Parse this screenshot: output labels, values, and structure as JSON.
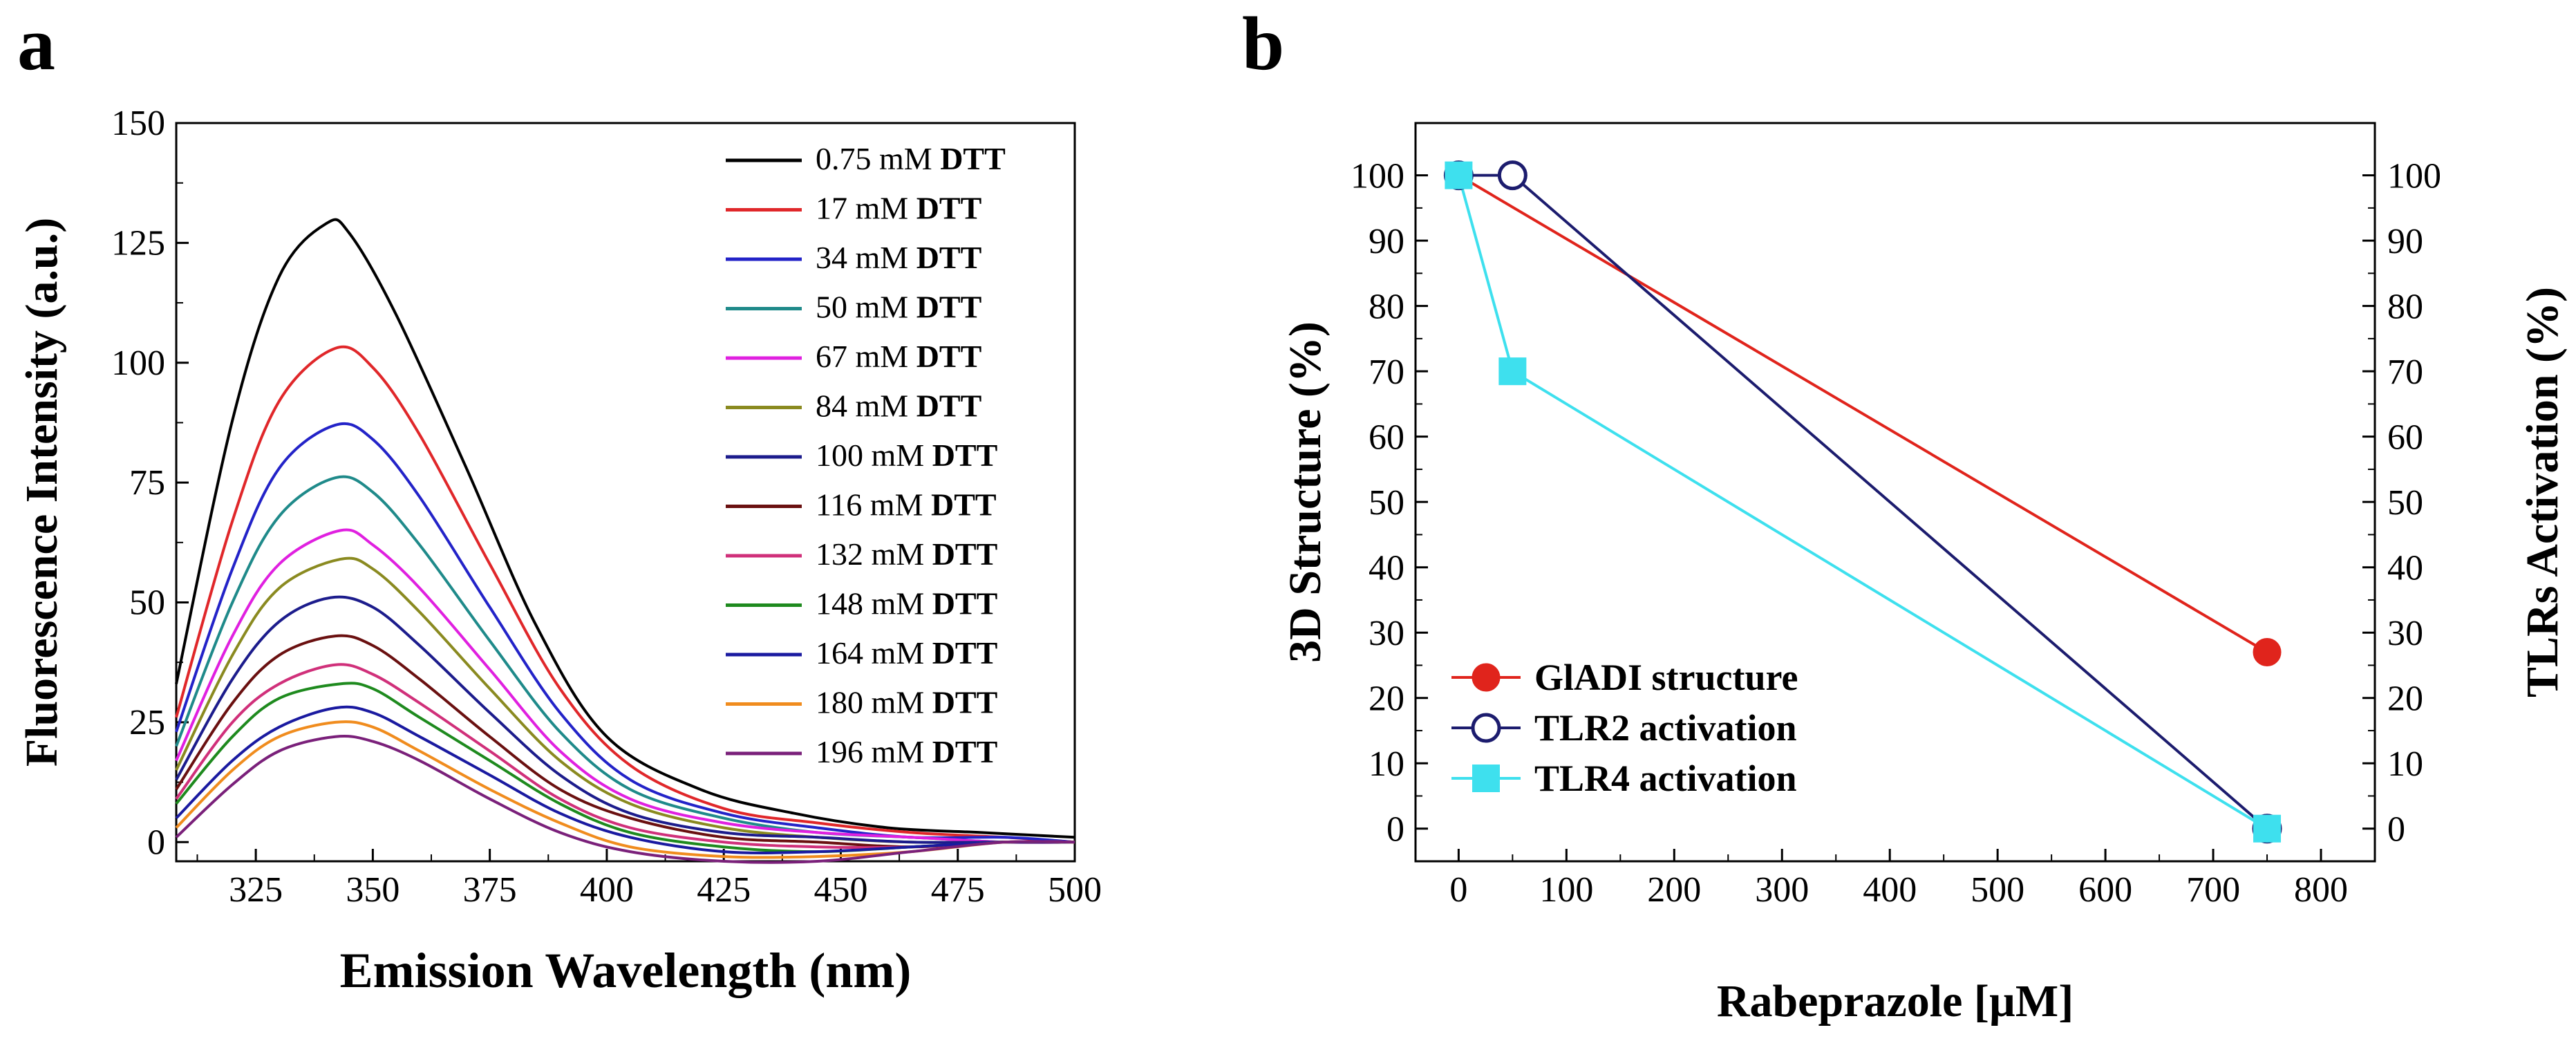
{
  "panels": {
    "a": "a",
    "b": "b"
  },
  "chart_data": [
    {
      "type": "line",
      "panel": "a",
      "xlabel": "Emission Wavelength (nm)",
      "ylabel": "Fluorescence Intensity (a.u.)",
      "xlim": [
        308,
        500
      ],
      "ylim": [
        -4,
        150
      ],
      "xticks": [
        325,
        350,
        375,
        400,
        425,
        450,
        475,
        500
      ],
      "yticks": [
        0,
        25,
        50,
        75,
        100,
        125,
        150
      ],
      "legend_suffix": "DTT",
      "series": [
        {
          "name": "0.75 mM",
          "color": "#000000",
          "peak": 129,
          "x": [
            308,
            320,
            330,
            340,
            345,
            355,
            370,
            385,
            400,
            420,
            440,
            460,
            480,
            500
          ],
          "y": [
            33,
            88,
            118,
            129,
            127,
            110,
            78,
            45,
            22,
            11,
            6,
            3,
            2,
            1
          ]
        },
        {
          "name": "17 mM",
          "color": "#e0272a",
          "peak": 103,
          "x": [
            308,
            320,
            330,
            342,
            350,
            360,
            375,
            390,
            405,
            425,
            445,
            465,
            485,
            500
          ],
          "y": [
            26,
            67,
            92,
            103,
            99,
            85,
            58,
            32,
            16,
            7,
            4,
            2,
            1,
            0
          ]
        },
        {
          "name": "34 mM",
          "color": "#2323c8",
          "peak": 87,
          "x": [
            308,
            320,
            330,
            342,
            350,
            360,
            375,
            390,
            405,
            425,
            445,
            465,
            485,
            500
          ],
          "y": [
            23,
            57,
            78,
            87,
            84,
            72,
            49,
            27,
            13,
            6,
            3,
            1,
            1,
            0
          ]
        },
        {
          "name": "50 mM",
          "color": "#1f8a8a",
          "peak": 76,
          "x": [
            308,
            320,
            330,
            342,
            350,
            360,
            375,
            390,
            405,
            425,
            445,
            465,
            485,
            500
          ],
          "y": [
            20,
            50,
            68,
            76,
            73,
            62,
            42,
            23,
            11,
            5,
            2,
            1,
            0,
            0
          ]
        },
        {
          "name": "67 mM",
          "color": "#e020e0",
          "peak": 65,
          "x": [
            308,
            320,
            330,
            343,
            350,
            360,
            375,
            390,
            405,
            425,
            445,
            465,
            485,
            500
          ],
          "y": [
            17,
            43,
            58,
            65,
            62,
            53,
            36,
            19,
            9,
            4,
            2,
            1,
            0,
            0
          ]
        },
        {
          "name": "84 mM",
          "color": "#8a8a20",
          "peak": 59,
          "x": [
            308,
            320,
            330,
            343,
            350,
            360,
            375,
            390,
            405,
            425,
            445,
            465,
            485,
            500
          ],
          "y": [
            15,
            39,
            53,
            59,
            57,
            48,
            32,
            17,
            8,
            3,
            1,
            0,
            0,
            0
          ]
        },
        {
          "name": "100 mM",
          "color": "#1c1c8c",
          "peak": 51,
          "x": [
            308,
            320,
            330,
            341,
            350,
            360,
            375,
            390,
            405,
            425,
            445,
            465,
            485,
            500
          ],
          "y": [
            13,
            34,
            46,
            51,
            49,
            41,
            27,
            14,
            6,
            2,
            1,
            0,
            0,
            0
          ]
        },
        {
          "name": "116 mM",
          "color": "#6a1010",
          "peak": 43,
          "x": [
            308,
            320,
            330,
            342,
            350,
            360,
            375,
            390,
            405,
            425,
            445,
            465,
            485,
            500
          ],
          "y": [
            11,
            29,
            39,
            43,
            41,
            34,
            22,
            11,
            5,
            1,
            0,
            -1,
            0,
            0
          ]
        },
        {
          "name": "132 mM",
          "color": "#d0307a",
          "peak": 37,
          "x": [
            308,
            320,
            330,
            342,
            350,
            360,
            375,
            390,
            405,
            425,
            445,
            465,
            485,
            500
          ],
          "y": [
            9,
            25,
            33,
            37,
            35,
            29,
            19,
            9,
            3,
            0,
            -1,
            -1,
            0,
            0
          ]
        },
        {
          "name": "148 mM",
          "color": "#1e8a1e",
          "peak": 33,
          "x": [
            308,
            320,
            330,
            343,
            350,
            360,
            375,
            390,
            405,
            425,
            445,
            465,
            485,
            500
          ],
          "y": [
            8,
            22,
            30,
            33,
            32,
            26,
            17,
            8,
            2,
            -1,
            -2,
            -1,
            0,
            0
          ]
        },
        {
          "name": "164 mM",
          "color": "#1a1aa0",
          "peak": 28,
          "x": [
            308,
            320,
            330,
            342,
            350,
            360,
            375,
            390,
            405,
            425,
            445,
            465,
            485,
            500
          ],
          "y": [
            5,
            17,
            24,
            28,
            27,
            22,
            14,
            6,
            1,
            -2,
            -2,
            -1,
            0,
            0
          ]
        },
        {
          "name": "180 mM",
          "color": "#f08c1e",
          "peak": 25,
          "x": [
            308,
            320,
            330,
            342,
            350,
            360,
            375,
            390,
            405,
            425,
            445,
            465,
            485,
            500
          ],
          "y": [
            3,
            15,
            22,
            25,
            24,
            19,
            11,
            4,
            -1,
            -3,
            -3,
            -2,
            0,
            0
          ]
        },
        {
          "name": "196 mM",
          "color": "#7a207a",
          "peak": 22,
          "x": [
            308,
            320,
            330,
            342,
            350,
            360,
            375,
            390,
            405,
            425,
            445,
            465,
            485,
            500
          ],
          "y": [
            1,
            12,
            19,
            22,
            21,
            17,
            9,
            2,
            -2,
            -4,
            -4,
            -2,
            0,
            0
          ]
        }
      ]
    },
    {
      "type": "line",
      "panel": "b",
      "xlabel": "Rabeprazole [µM]",
      "ylabel": "3D Structure (%)",
      "ylabel_right": "TLRs Activation (%)",
      "xlim": [
        -40,
        850
      ],
      "ylim": [
        -5,
        108
      ],
      "xticks": [
        0,
        100,
        200,
        300,
        400,
        500,
        600,
        700,
        800
      ],
      "yticks": [
        0,
        10,
        20,
        30,
        40,
        50,
        60,
        70,
        80,
        90,
        100
      ],
      "series": [
        {
          "name": "GlADI structure",
          "color": "#e0241c",
          "marker": "filled-circle",
          "x": [
            0,
            750
          ],
          "y": [
            100,
            27
          ]
        },
        {
          "name": "TLR2 activation",
          "color": "#1c1c6e",
          "marker": "open-circle",
          "x": [
            0,
            50,
            750
          ],
          "y": [
            100,
            100,
            0
          ]
        },
        {
          "name": "TLR4 activation",
          "color": "#3ee0ee",
          "marker": "filled-square",
          "x": [
            0,
            50,
            750
          ],
          "y": [
            100,
            70,
            0
          ]
        }
      ]
    }
  ]
}
